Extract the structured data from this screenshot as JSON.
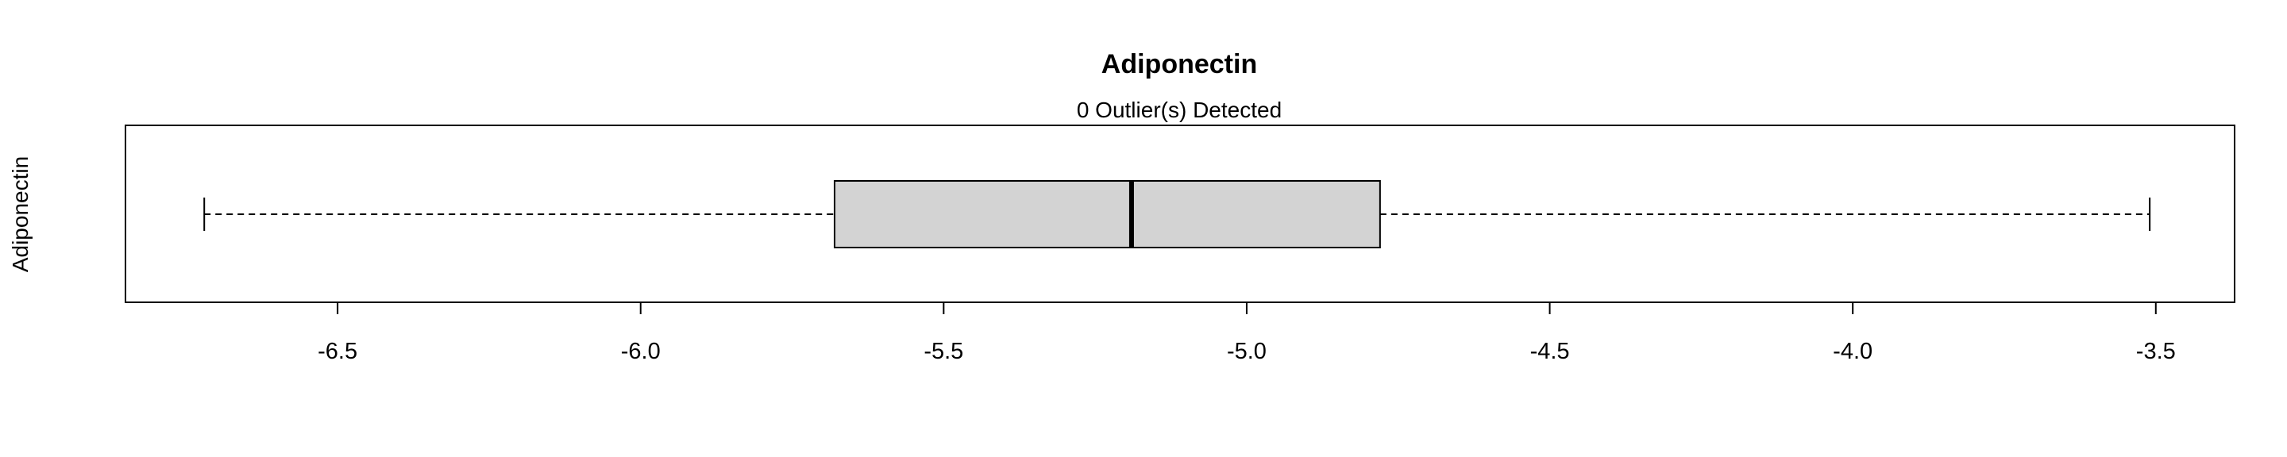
{
  "chart_data": {
    "type": "boxplot",
    "orientation": "horizontal",
    "title": "Adiponectin",
    "subtitle": "0 Outlier(s) Detected",
    "xlabel": "",
    "ylabel": "Adiponectin",
    "xlim": [
      -6.85,
      -3.37
    ],
    "xticks": [
      -6.5,
      -6.0,
      -5.5,
      -5.0,
      -4.5,
      -4.0,
      -3.5
    ],
    "xtick_labels": [
      "-6.5",
      "-6.0",
      "-5.5",
      "-5.0",
      "-4.5",
      "-4.0",
      "-3.5"
    ],
    "series": [
      {
        "whisker_low": -6.72,
        "q1": -5.68,
        "median": -5.19,
        "q3": -4.78,
        "whisker_high": -3.51,
        "outliers": []
      }
    ],
    "box_fill": "#d3d3d3",
    "grid": false
  }
}
